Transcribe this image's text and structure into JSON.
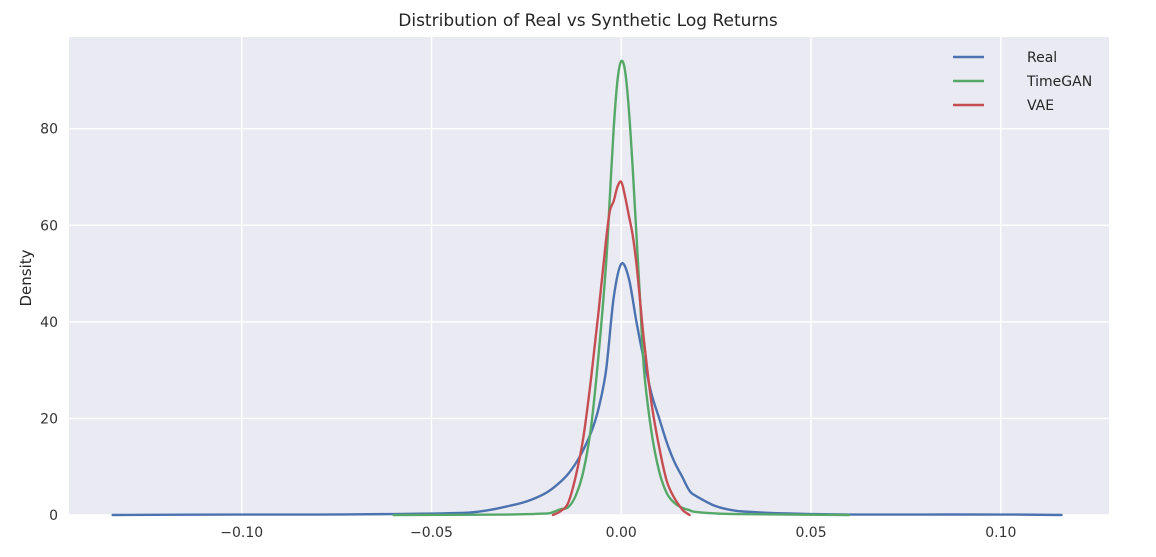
{
  "chart_data": {
    "type": "line",
    "title": "Distribution of Real vs Synthetic Log Returns",
    "xlabel": "",
    "ylabel": "Density",
    "xlim": [
      -0.1455,
      0.1285
    ],
    "ylim": [
      0,
      99
    ],
    "x_ticks": [
      -0.1,
      -0.05,
      0.0,
      0.05,
      0.1
    ],
    "x_tick_labels": [
      "−0.10",
      "−0.05",
      "0.00",
      "0.05",
      "0.10"
    ],
    "y_ticks": [
      0,
      20,
      40,
      60,
      80
    ],
    "y_tick_labels": [
      "0",
      "20",
      "40",
      "60",
      "80"
    ],
    "grid": true,
    "legend_position": "top-right",
    "series": [
      {
        "name": "Real",
        "color": "#4C72B0",
        "x": [
          -0.134,
          -0.1,
          -0.08,
          -0.06,
          -0.05,
          -0.04,
          -0.035,
          -0.03,
          -0.025,
          -0.02,
          -0.017,
          -0.014,
          -0.011,
          -0.008,
          -0.006,
          -0.004,
          -0.002,
          0.0,
          0.002,
          0.004,
          0.006,
          0.008,
          0.01,
          0.012,
          0.014,
          0.016,
          0.018,
          0.02,
          0.025,
          0.03,
          0.035,
          0.04,
          0.05,
          0.06,
          0.08,
          0.1,
          0.116
        ],
        "y": [
          0,
          0.1,
          0.1,
          0.2,
          0.3,
          0.5,
          1.0,
          1.8,
          2.8,
          4.5,
          6.2,
          8.5,
          12,
          17,
          22,
          30,
          45,
          52,
          49,
          40,
          32,
          25,
          20,
          15,
          11,
          8,
          5,
          3.8,
          1.8,
          0.9,
          0.6,
          0.4,
          0.2,
          0.1,
          0.1,
          0.1,
          0
        ]
      },
      {
        "name": "TimeGAN",
        "color": "#55A868",
        "x": [
          -0.06,
          -0.03,
          -0.02,
          -0.018,
          -0.016,
          -0.014,
          -0.012,
          -0.01,
          -0.008,
          -0.006,
          -0.004,
          -0.003,
          -0.002,
          -0.001,
          0.0,
          0.001,
          0.002,
          0.003,
          0.004,
          0.005,
          0.006,
          0.008,
          0.01,
          0.012,
          0.014,
          0.016,
          0.018,
          0.02,
          0.03,
          0.06
        ],
        "y": [
          0,
          0.1,
          0.3,
          0.6,
          1.2,
          1.6,
          4.0,
          9.0,
          18,
          33,
          52,
          66,
          80,
          90,
          94,
          92,
          84,
          72,
          58,
          44,
          30,
          17,
          9,
          4.5,
          2.5,
          1.5,
          1.0,
          0.6,
          0.2,
          0
        ]
      },
      {
        "name": "VAE",
        "color": "#C44E52",
        "x": [
          -0.018,
          -0.016,
          -0.014,
          -0.012,
          -0.01,
          -0.008,
          -0.006,
          -0.004,
          -0.003,
          -0.002,
          -0.001,
          0.0,
          0.001,
          0.002,
          0.003,
          0.004,
          0.005,
          0.006,
          0.008,
          0.01,
          0.012,
          0.014,
          0.016,
          0.017,
          0.018
        ],
        "y": [
          0,
          0.8,
          2.5,
          8,
          16,
          28,
          42,
          57,
          63,
          65,
          68,
          69,
          66,
          62,
          58,
          52,
          44,
          36,
          23,
          14,
          7,
          3.5,
          1.2,
          0.5,
          0
        ]
      }
    ]
  }
}
